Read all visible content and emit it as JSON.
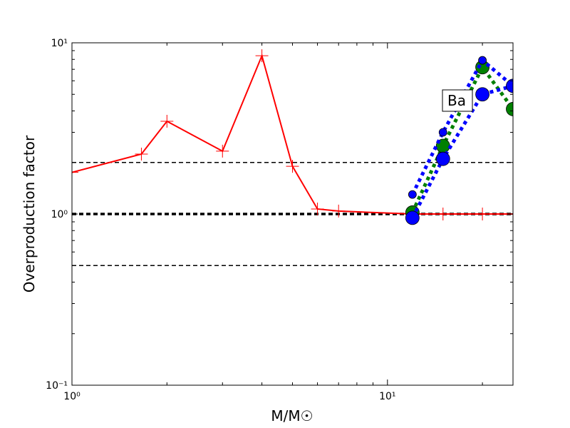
{
  "chart_data": {
    "type": "line",
    "xlabel": "M/M☉",
    "ylabel": "Overproduction factor",
    "xscale": "log",
    "yscale": "log",
    "xlim": [
      1,
      25
    ],
    "ylim": [
      0.1,
      10
    ],
    "xticks": [
      {
        "value": 1,
        "label": "10⁰"
      },
      {
        "value": 10,
        "label": "10¹"
      }
    ],
    "yticks": [
      {
        "value": 0.1,
        "label": "10⁻¹"
      },
      {
        "value": 1,
        "label": "10⁰"
      },
      {
        "value": 10,
        "label": "10¹"
      }
    ],
    "xminorticks": [
      2,
      3,
      4,
      5,
      6,
      7,
      8,
      9,
      20
    ],
    "yminorticks": [
      0.2,
      0.3,
      0.4,
      0.5,
      0.6,
      0.7,
      0.8,
      0.9,
      2,
      3,
      4,
      5,
      6,
      7,
      8,
      9
    ],
    "hlines": [
      {
        "y": 2,
        "linewidth": 1.5
      },
      {
        "y": 1,
        "linewidth": 3.5
      },
      {
        "y": 0.5,
        "linewidth": 1.5
      }
    ],
    "annotation": "Ba",
    "series": [
      {
        "color": "#ff0000",
        "linestyle": "solid",
        "marker": "plus",
        "x": [
          1,
          1.66,
          2,
          3,
          4,
          5,
          6,
          7,
          12,
          15,
          20,
          25
        ],
        "values": [
          1.75,
          2.24,
          3.48,
          2.33,
          8.4,
          1.9,
          1.07,
          1.04,
          1.0,
          1.0,
          1.0,
          1.0
        ]
      },
      {
        "color": "#008000",
        "linestyle": "dotted",
        "marker": "circle-large",
        "x": [
          12,
          15,
          20,
          25
        ],
        "values": [
          1.02,
          2.5,
          7.2,
          4.1
        ]
      },
      {
        "color": "#0000ff",
        "linestyle": "dotted",
        "marker": "circle-small",
        "x": [
          12,
          15,
          20,
          25
        ],
        "values": [
          1.3,
          3.0,
          7.9,
          5.6
        ]
      },
      {
        "color": "#0000ff",
        "linestyle": "dotted",
        "marker": "circle-large",
        "x": [
          12,
          15,
          20,
          25
        ],
        "values": [
          0.95,
          2.1,
          5.0,
          5.6
        ]
      }
    ]
  }
}
